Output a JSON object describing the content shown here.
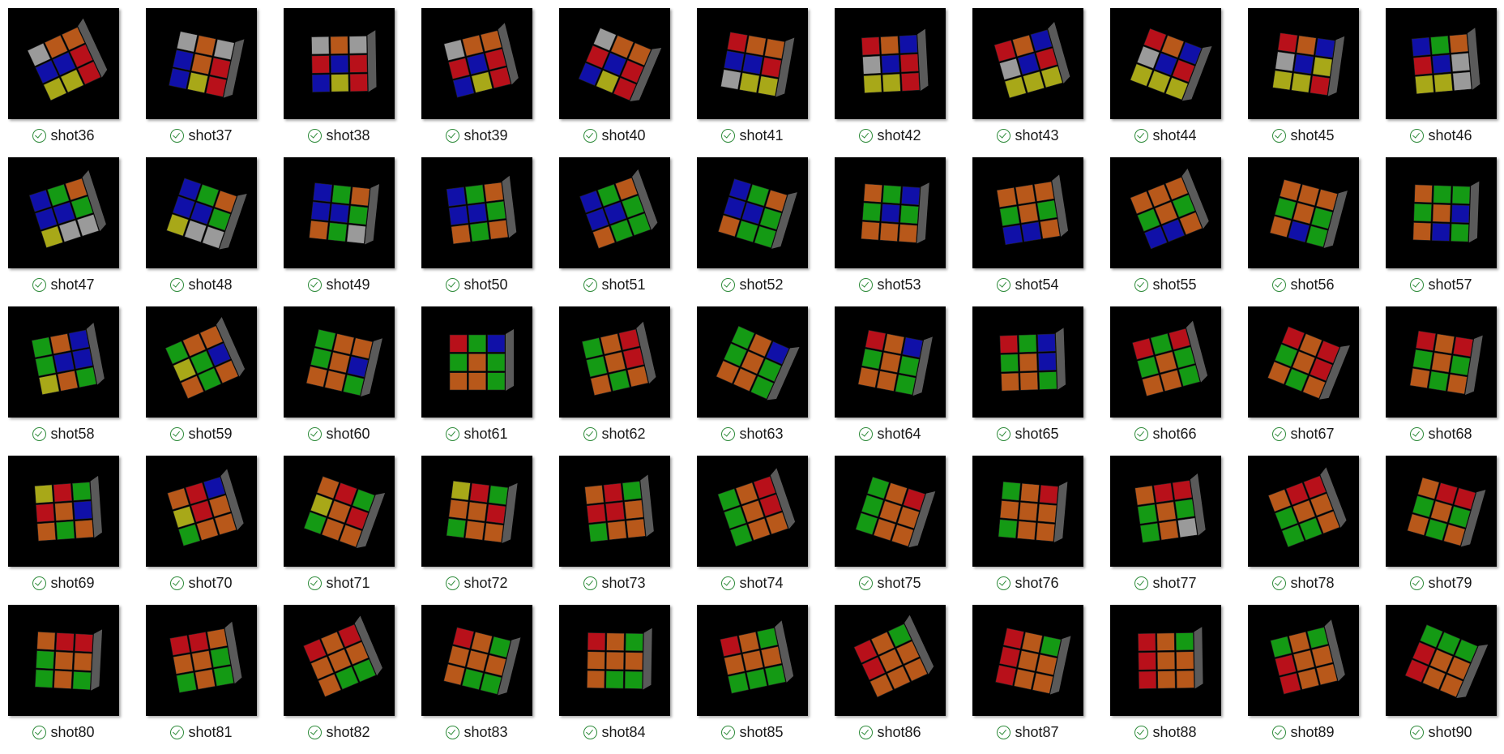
{
  "window": {
    "view": "file-explorer-thumbnails"
  },
  "colors": {
    "thumb_background": "#000000",
    "status_ok": "#2e8b3a",
    "cube_red": "#b8101a",
    "cube_blue": "#1010a8",
    "cube_yellow": "#a8a818",
    "cube_white": "#9a9a9a",
    "cube_green": "#149a14",
    "cube_orange": "#b8581a"
  },
  "icons": {
    "status": "check-circle-icon"
  },
  "files": [
    {
      "name": "shot36",
      "status": "synced",
      "faces": [
        "W",
        "O",
        "O",
        "B",
        "B",
        "R",
        "Y",
        "Y",
        "R"
      ]
    },
    {
      "name": "shot37",
      "status": "synced",
      "faces": [
        "W",
        "O",
        "W",
        "B",
        "O",
        "R",
        "B",
        "Y",
        "R"
      ]
    },
    {
      "name": "shot38",
      "status": "synced",
      "faces": [
        "W",
        "O",
        "W",
        "R",
        "B",
        "R",
        "B",
        "Y",
        "R"
      ]
    },
    {
      "name": "shot39",
      "status": "synced",
      "faces": [
        "W",
        "O",
        "O",
        "R",
        "B",
        "R",
        "B",
        "Y",
        "R"
      ]
    },
    {
      "name": "shot40",
      "status": "synced",
      "faces": [
        "W",
        "O",
        "O",
        "R",
        "B",
        "R",
        "B",
        "Y",
        "R"
      ]
    },
    {
      "name": "shot41",
      "status": "synced",
      "faces": [
        "R",
        "O",
        "O",
        "B",
        "B",
        "R",
        "W",
        "Y",
        "Y"
      ]
    },
    {
      "name": "shot42",
      "status": "synced",
      "faces": [
        "R",
        "O",
        "B",
        "W",
        "B",
        "R",
        "Y",
        "Y",
        "R"
      ]
    },
    {
      "name": "shot43",
      "status": "synced",
      "faces": [
        "R",
        "O",
        "B",
        "W",
        "B",
        "R",
        "Y",
        "Y",
        "Y"
      ]
    },
    {
      "name": "shot44",
      "status": "synced",
      "faces": [
        "R",
        "O",
        "B",
        "W",
        "B",
        "R",
        "Y",
        "Y",
        "Y"
      ]
    },
    {
      "name": "shot45",
      "status": "synced",
      "faces": [
        "R",
        "O",
        "B",
        "W",
        "B",
        "Y",
        "Y",
        "Y",
        "R"
      ]
    },
    {
      "name": "shot46",
      "status": "synced",
      "faces": [
        "B",
        "G",
        "O",
        "R",
        "B",
        "W",
        "Y",
        "Y",
        "W"
      ]
    },
    {
      "name": "shot47",
      "status": "synced",
      "faces": [
        "B",
        "G",
        "O",
        "B",
        "B",
        "G",
        "Y",
        "W",
        "W"
      ]
    },
    {
      "name": "shot48",
      "status": "synced",
      "faces": [
        "B",
        "G",
        "O",
        "B",
        "B",
        "G",
        "Y",
        "W",
        "W"
      ]
    },
    {
      "name": "shot49",
      "status": "synced",
      "faces": [
        "B",
        "G",
        "O",
        "B",
        "B",
        "G",
        "O",
        "G",
        "W"
      ]
    },
    {
      "name": "shot50",
      "status": "synced",
      "faces": [
        "B",
        "G",
        "O",
        "B",
        "B",
        "G",
        "O",
        "G",
        "O"
      ]
    },
    {
      "name": "shot51",
      "status": "synced",
      "faces": [
        "B",
        "G",
        "O",
        "B",
        "B",
        "G",
        "O",
        "G",
        "G"
      ]
    },
    {
      "name": "shot52",
      "status": "synced",
      "faces": [
        "B",
        "G",
        "O",
        "B",
        "B",
        "G",
        "O",
        "G",
        "G"
      ]
    },
    {
      "name": "shot53",
      "status": "synced",
      "faces": [
        "O",
        "G",
        "B",
        "G",
        "B",
        "G",
        "O",
        "O",
        "O"
      ]
    },
    {
      "name": "shot54",
      "status": "synced",
      "faces": [
        "O",
        "O",
        "O",
        "G",
        "O",
        "G",
        "B",
        "B",
        "O"
      ]
    },
    {
      "name": "shot55",
      "status": "synced",
      "faces": [
        "O",
        "O",
        "O",
        "G",
        "O",
        "G",
        "B",
        "B",
        "O"
      ]
    },
    {
      "name": "shot56",
      "status": "synced",
      "faces": [
        "O",
        "O",
        "O",
        "G",
        "O",
        "G",
        "O",
        "B",
        "G"
      ]
    },
    {
      "name": "shot57",
      "status": "synced",
      "faces": [
        "O",
        "G",
        "G",
        "G",
        "O",
        "B",
        "O",
        "B",
        "G"
      ]
    },
    {
      "name": "shot58",
      "status": "synced",
      "faces": [
        "G",
        "O",
        "B",
        "G",
        "B",
        "B",
        "Y",
        "O",
        "G"
      ]
    },
    {
      "name": "shot59",
      "status": "synced",
      "faces": [
        "G",
        "O",
        "O",
        "Y",
        "G",
        "B",
        "O",
        "G",
        "O"
      ]
    },
    {
      "name": "shot60",
      "status": "synced",
      "faces": [
        "G",
        "O",
        "O",
        "G",
        "O",
        "B",
        "O",
        "O",
        "G"
      ]
    },
    {
      "name": "shot61",
      "status": "synced",
      "faces": [
        "R",
        "G",
        "B",
        "G",
        "O",
        "G",
        "O",
        "O",
        "G"
      ]
    },
    {
      "name": "shot62",
      "status": "synced",
      "faces": [
        "G",
        "O",
        "R",
        "G",
        "O",
        "R",
        "O",
        "G",
        "O"
      ]
    },
    {
      "name": "shot63",
      "status": "synced",
      "faces": [
        "G",
        "O",
        "B",
        "G",
        "O",
        "G",
        "O",
        "O",
        "G"
      ]
    },
    {
      "name": "shot64",
      "status": "synced",
      "faces": [
        "R",
        "O",
        "B",
        "G",
        "O",
        "G",
        "O",
        "O",
        "G"
      ]
    },
    {
      "name": "shot65",
      "status": "synced",
      "faces": [
        "R",
        "G",
        "B",
        "G",
        "O",
        "B",
        "O",
        "O",
        "G"
      ]
    },
    {
      "name": "shot66",
      "status": "synced",
      "faces": [
        "R",
        "G",
        "R",
        "G",
        "O",
        "G",
        "O",
        "O",
        "G"
      ]
    },
    {
      "name": "shot67",
      "status": "synced",
      "faces": [
        "R",
        "O",
        "R",
        "G",
        "O",
        "R",
        "O",
        "G",
        "O"
      ]
    },
    {
      "name": "shot68",
      "status": "synced",
      "faces": [
        "R",
        "O",
        "R",
        "G",
        "O",
        "G",
        "O",
        "G",
        "O"
      ]
    },
    {
      "name": "shot69",
      "status": "synced",
      "faces": [
        "Y",
        "R",
        "G",
        "R",
        "O",
        "B",
        "O",
        "G",
        "O"
      ]
    },
    {
      "name": "shot70",
      "status": "synced",
      "faces": [
        "O",
        "R",
        "B",
        "Y",
        "R",
        "O",
        "G",
        "O",
        "O"
      ]
    },
    {
      "name": "shot71",
      "status": "synced",
      "faces": [
        "O",
        "R",
        "G",
        "Y",
        "O",
        "R",
        "G",
        "O",
        "O"
      ]
    },
    {
      "name": "shot72",
      "status": "synced",
      "faces": [
        "Y",
        "R",
        "G",
        "O",
        "O",
        "R",
        "G",
        "O",
        "O"
      ]
    },
    {
      "name": "shot73",
      "status": "synced",
      "faces": [
        "O",
        "R",
        "G",
        "R",
        "R",
        "O",
        "G",
        "O",
        "O"
      ]
    },
    {
      "name": "shot74",
      "status": "synced",
      "faces": [
        "G",
        "O",
        "R",
        "G",
        "O",
        "R",
        "G",
        "O",
        "O"
      ]
    },
    {
      "name": "shot75",
      "status": "synced",
      "faces": [
        "G",
        "O",
        "R",
        "G",
        "O",
        "O",
        "G",
        "O",
        "O"
      ]
    },
    {
      "name": "shot76",
      "status": "synced",
      "faces": [
        "G",
        "O",
        "R",
        "O",
        "O",
        "O",
        "G",
        "O",
        "O"
      ]
    },
    {
      "name": "shot77",
      "status": "synced",
      "faces": [
        "O",
        "R",
        "R",
        "G",
        "O",
        "G",
        "G",
        "O",
        "W"
      ]
    },
    {
      "name": "shot78",
      "status": "synced",
      "faces": [
        "O",
        "R",
        "R",
        "G",
        "O",
        "O",
        "G",
        "G",
        "O"
      ]
    },
    {
      "name": "shot79",
      "status": "synced",
      "faces": [
        "O",
        "R",
        "R",
        "G",
        "O",
        "G",
        "O",
        "G",
        "O"
      ]
    },
    {
      "name": "shot80",
      "status": "synced",
      "faces": [
        "O",
        "R",
        "R",
        "G",
        "O",
        "O",
        "G",
        "O",
        "G"
      ]
    },
    {
      "name": "shot81",
      "status": "synced",
      "faces": [
        "R",
        "R",
        "O",
        "O",
        "O",
        "G",
        "G",
        "O",
        "G"
      ]
    },
    {
      "name": "shot82",
      "status": "synced",
      "faces": [
        "R",
        "O",
        "R",
        "O",
        "O",
        "O",
        "O",
        "G",
        "G"
      ]
    },
    {
      "name": "shot83",
      "status": "synced",
      "faces": [
        "R",
        "O",
        "G",
        "O",
        "O",
        "O",
        "O",
        "G",
        "G"
      ]
    },
    {
      "name": "shot84",
      "status": "synced",
      "faces": [
        "R",
        "O",
        "G",
        "O",
        "O",
        "O",
        "O",
        "G",
        "G"
      ]
    },
    {
      "name": "shot85",
      "status": "synced",
      "faces": [
        "R",
        "O",
        "G",
        "O",
        "O",
        "O",
        "G",
        "G",
        "G"
      ]
    },
    {
      "name": "shot86",
      "status": "synced",
      "faces": [
        "R",
        "O",
        "G",
        "R",
        "O",
        "O",
        "O",
        "O",
        "O"
      ]
    },
    {
      "name": "shot87",
      "status": "synced",
      "faces": [
        "R",
        "O",
        "G",
        "R",
        "O",
        "O",
        "R",
        "O",
        "O"
      ]
    },
    {
      "name": "shot88",
      "status": "synced",
      "faces": [
        "R",
        "O",
        "G",
        "R",
        "O",
        "O",
        "R",
        "O",
        "O"
      ]
    },
    {
      "name": "shot89",
      "status": "synced",
      "faces": [
        "G",
        "O",
        "G",
        "R",
        "O",
        "O",
        "R",
        "O",
        "O"
      ]
    },
    {
      "name": "shot90",
      "status": "synced",
      "faces": [
        "G",
        "G",
        "G",
        "R",
        "O",
        "O",
        "R",
        "O",
        "O"
      ]
    }
  ]
}
